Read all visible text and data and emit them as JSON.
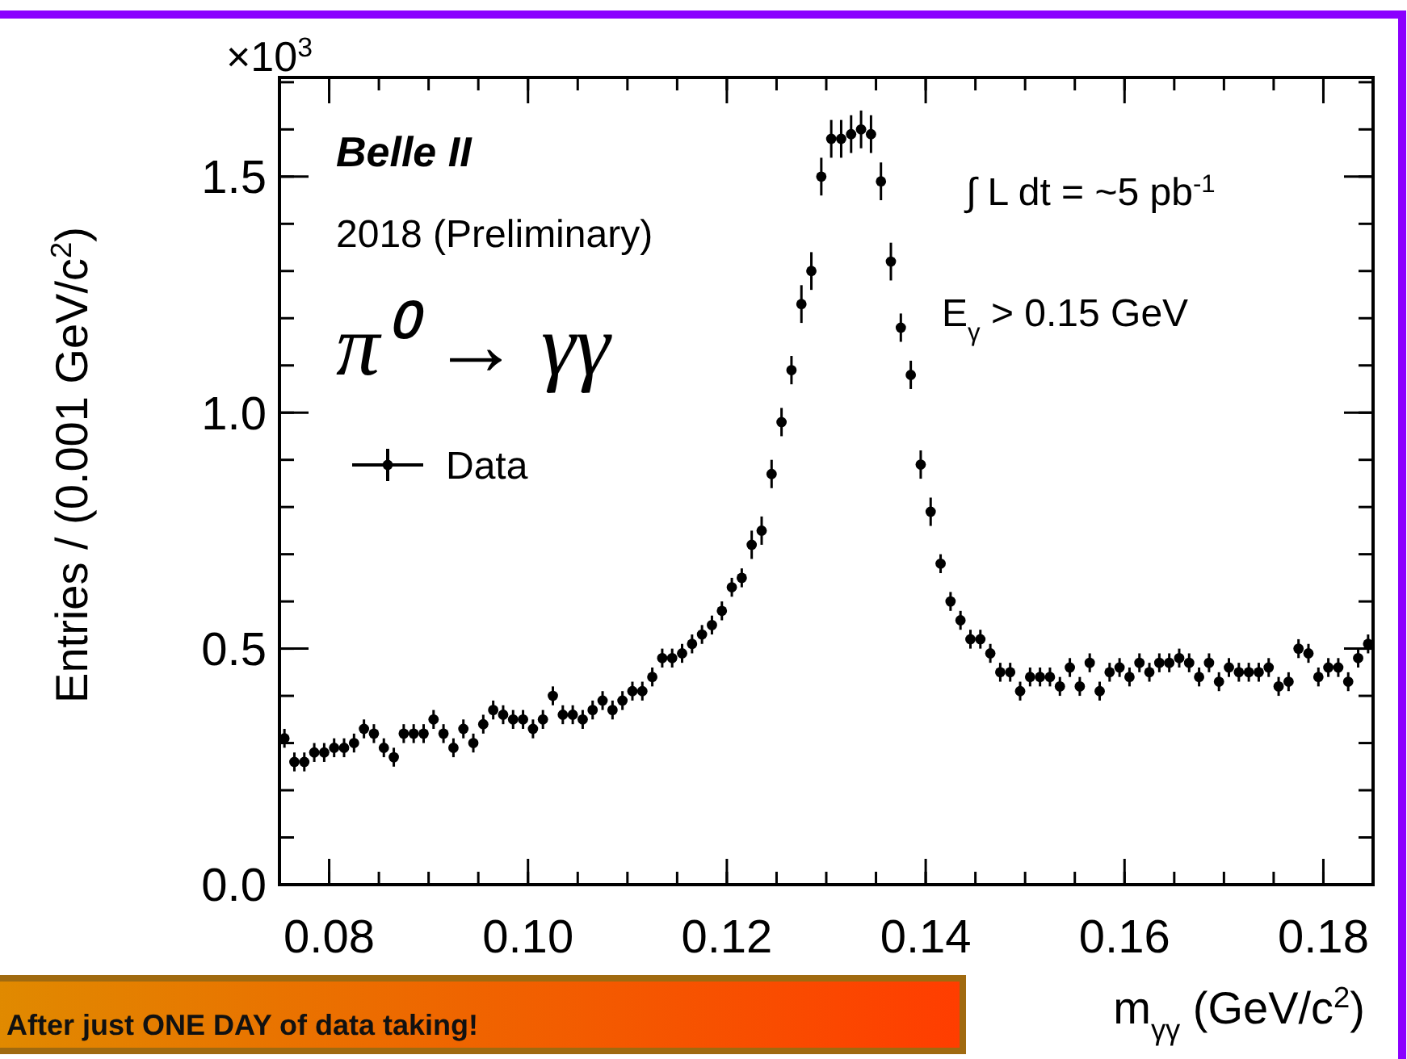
{
  "chart_data": {
    "type": "scatter",
    "xlabel": "m$_{γγ}$ (GeV/c$^{2}$)",
    "ylabel": "Entries / (0.001 GeV/c$^{2}$)",
    "xlim": [
      0.075,
      0.185
    ],
    "ylim": [
      0,
      1.71
    ],
    "xticks": [
      {
        "value": 0.08,
        "label": "0.08"
      },
      {
        "value": 0.1,
        "label": "0.10"
      },
      {
        "value": 0.12,
        "label": "0.12"
      },
      {
        "value": 0.14,
        "label": "0.14"
      },
      {
        "value": 0.16,
        "label": "0.16"
      },
      {
        "value": 0.18,
        "label": "0.18"
      }
    ],
    "yticks": [
      {
        "value": 0,
        "label": "0.0"
      },
      {
        "value": 0.5,
        "label": "0.5"
      },
      {
        "value": 1,
        "label": "1.0"
      },
      {
        "value": 1.5,
        "label": "1.5"
      }
    ],
    "legend": "top left",
    "marker": "circle",
    "annotations": [
      "×10$^{3}$",
      "Belle II",
      "2018 (Preliminary)",
      "π⁰ → γγ",
      "∫ L dt = ~5 pb$^{-1}$",
      "E$_{γ}$ > 0.15 GeV",
      "After just ONE DAY of data taking!"
    ],
    "series": [
      {
        "name": "Data",
        "color": "#000000",
        "x": [
          0.0755,
          0.0765,
          0.0775,
          0.0785,
          0.0795,
          0.0805,
          0.0815,
          0.0825,
          0.0835,
          0.0845,
          0.0855,
          0.0865,
          0.0875,
          0.0885,
          0.0895,
          0.0905,
          0.0915,
          0.0925,
          0.0935,
          0.0945,
          0.0955,
          0.0965,
          0.0975,
          0.0985,
          0.0995,
          0.1005,
          0.1015,
          0.1025,
          0.1035,
          0.1045,
          0.1055,
          0.1065,
          0.1075,
          0.1085,
          0.1095,
          0.1105,
          0.1115,
          0.1125,
          0.1135,
          0.1145,
          0.1155,
          0.1165,
          0.1175,
          0.1185,
          0.1195,
          0.1205,
          0.1215,
          0.1225,
          0.1235,
          0.1245,
          0.1255,
          0.1265,
          0.1275,
          0.1285,
          0.1295,
          0.1305,
          0.1315,
          0.1325,
          0.1335,
          0.1345,
          0.1355,
          0.1365,
          0.1375,
          0.1385,
          0.1395,
          0.1405,
          0.1415,
          0.1425,
          0.1435,
          0.1445,
          0.1455,
          0.1465,
          0.1475,
          0.1485,
          0.1495,
          0.1505,
          0.1515,
          0.1525,
          0.1535,
          0.1545,
          0.1555,
          0.1565,
          0.1575,
          0.1585,
          0.1595,
          0.1605,
          0.1615,
          0.1625,
          0.1635,
          0.1645,
          0.1655,
          0.1665,
          0.1675,
          0.1685,
          0.1695,
          0.1705,
          0.1715,
          0.1725,
          0.1735,
          0.1745,
          0.1755,
          0.1765,
          0.1775,
          0.1785,
          0.1795,
          0.1805,
          0.1815,
          0.1825,
          0.1835,
          0.1845
        ],
        "values": [
          0.31,
          0.26,
          0.26,
          0.28,
          0.28,
          0.29,
          0.29,
          0.3,
          0.33,
          0.32,
          0.29,
          0.27,
          0.32,
          0.32,
          0.32,
          0.35,
          0.32,
          0.29,
          0.33,
          0.3,
          0.34,
          0.37,
          0.36,
          0.35,
          0.35,
          0.33,
          0.35,
          0.4,
          0.36,
          0.36,
          0.35,
          0.37,
          0.39,
          0.37,
          0.39,
          0.41,
          0.41,
          0.44,
          0.48,
          0.48,
          0.49,
          0.51,
          0.53,
          0.55,
          0.58,
          0.63,
          0.65,
          0.72,
          0.75,
          0.87,
          0.98,
          1.09,
          1.23,
          1.3,
          1.5,
          1.58,
          1.58,
          1.59,
          1.6,
          1.59,
          1.49,
          1.32,
          1.18,
          1.08,
          0.89,
          0.79,
          0.68,
          0.6,
          0.56,
          0.52,
          0.52,
          0.49,
          0.45,
          0.45,
          0.41,
          0.44,
          0.44,
          0.44,
          0.42,
          0.46,
          0.42,
          0.47,
          0.41,
          0.45,
          0.46,
          0.44,
          0.47,
          0.45,
          0.47,
          0.47,
          0.48,
          0.47,
          0.44,
          0.47,
          0.43,
          0.46,
          0.45,
          0.45,
          0.45,
          0.46,
          0.42,
          0.43,
          0.5,
          0.49,
          0.44,
          0.46,
          0.46,
          0.43,
          0.48,
          0.51
        ],
        "errors": [
          0.02,
          0.02,
          0.02,
          0.02,
          0.02,
          0.02,
          0.02,
          0.02,
          0.02,
          0.02,
          0.02,
          0.02,
          0.02,
          0.02,
          0.02,
          0.02,
          0.02,
          0.02,
          0.02,
          0.02,
          0.02,
          0.02,
          0.02,
          0.02,
          0.02,
          0.02,
          0.02,
          0.02,
          0.02,
          0.02,
          0.02,
          0.02,
          0.02,
          0.02,
          0.02,
          0.02,
          0.02,
          0.02,
          0.02,
          0.02,
          0.02,
          0.02,
          0.02,
          0.02,
          0.02,
          0.02,
          0.02,
          0.03,
          0.03,
          0.03,
          0.03,
          0.03,
          0.04,
          0.04,
          0.04,
          0.04,
          0.04,
          0.04,
          0.04,
          0.04,
          0.04,
          0.04,
          0.03,
          0.03,
          0.03,
          0.03,
          0.02,
          0.02,
          0.02,
          0.02,
          0.02,
          0.02,
          0.02,
          0.02,
          0.02,
          0.02,
          0.02,
          0.02,
          0.02,
          0.02,
          0.02,
          0.02,
          0.02,
          0.02,
          0.02,
          0.02,
          0.02,
          0.02,
          0.02,
          0.02,
          0.02,
          0.02,
          0.02,
          0.02,
          0.02,
          0.02,
          0.02,
          0.02,
          0.02,
          0.02,
          0.02,
          0.02,
          0.02,
          0.02,
          0.02,
          0.02,
          0.02,
          0.02,
          0.02,
          0.02
        ]
      }
    ]
  }
}
